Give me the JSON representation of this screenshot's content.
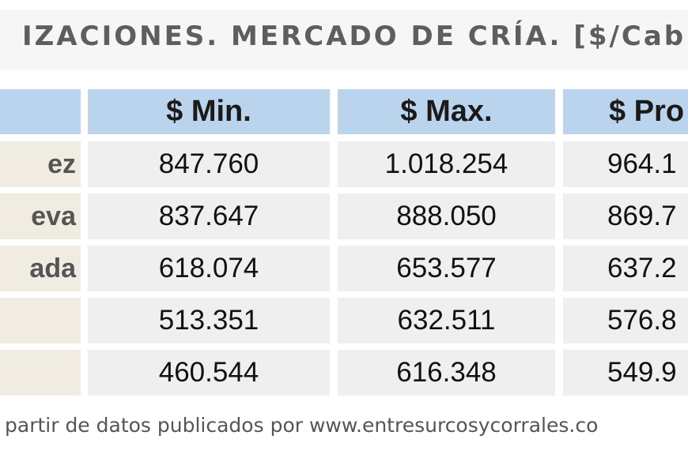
{
  "title": "IZACIONES. MERCADO DE CRÍA. [$/Cab",
  "table": {
    "headers": [
      "",
      "$ Min.",
      "$ Max.",
      "$ Pro"
    ],
    "rows": [
      {
        "label": "ez",
        "min": "847.760",
        "max": "1.018.254",
        "prom": "964.1"
      },
      {
        "label": "eva",
        "min": "837.647",
        "max": "888.050",
        "prom": "869.7"
      },
      {
        "label": "ada",
        "min": "618.074",
        "max": "653.577",
        "prom": "637.2"
      },
      {
        "label": "",
        "min": "513.351",
        "max": "632.511",
        "prom": "576.8"
      },
      {
        "label": "",
        "min": "460.544",
        "max": "616.348",
        "prom": "549.9"
      }
    ]
  },
  "footer": "partir de datos publicados por www.entresurcosycorrales.co",
  "colors": {
    "header_bg": "#b9d4ec",
    "label_bg": "#f0ece2",
    "cell_bg": "#efefef"
  }
}
